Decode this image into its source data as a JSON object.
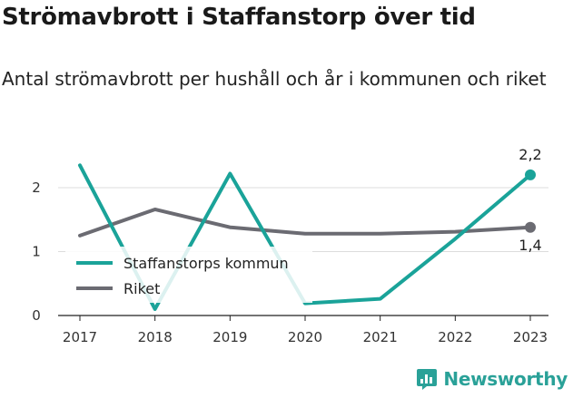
{
  "title": "Strömavbrott i Staffanstorp över tid",
  "subtitle": "Antal strömavbrott per hushåll och år i kommunen och riket",
  "brand": "Newsworthy",
  "chart_data": {
    "type": "line",
    "x": [
      "2017",
      "2018",
      "2019",
      "2020",
      "2021",
      "2022",
      "2023"
    ],
    "series": [
      {
        "name": "Staffanstorps kommun",
        "values": [
          2.35,
          0.1,
          2.22,
          0.19,
          0.26,
          1.2,
          2.2
        ],
        "color": "#1aa399"
      },
      {
        "name": "Riket",
        "values": [
          1.25,
          1.66,
          1.38,
          1.28,
          1.28,
          1.31,
          1.38
        ],
        "color": "#6b6b72"
      }
    ],
    "ylim": [
      0,
      2.3
    ],
    "yticks": [
      0,
      1,
      2
    ],
    "ytick_labels": [
      "0",
      "1",
      "2"
    ],
    "end_labels": [
      "2,2",
      "1,4"
    ],
    "grid": true,
    "legend": "bottom-left"
  }
}
